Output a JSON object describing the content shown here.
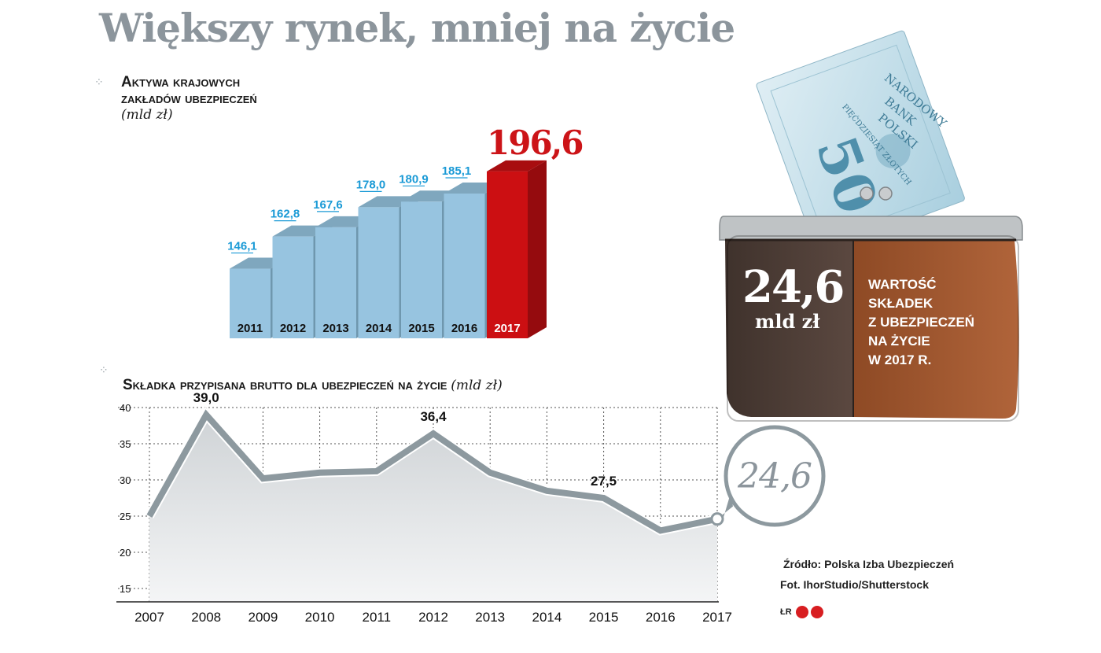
{
  "title": "Większy rynek, mniej na życie",
  "bar_section": {
    "title_line1": "Aktywa krajowych",
    "title_line2": "zakładów ubezpieczeń",
    "unit": "(mld zł)"
  },
  "line_section": {
    "title": "Składka przypisana brutto dla ubezpieczeń na życie",
    "unit": "(mld zł)",
    "callout": "24,6"
  },
  "wallet": {
    "value": "24,6",
    "unit": "mld zł",
    "caption_lines": [
      "WARTOŚĆ",
      "SKŁADEK",
      "Z UBEZPIECZEŃ",
      "NA ŻYCIE",
      "W 2017 R."
    ],
    "banknote_number": "50",
    "banknote_text1": "NARODOWY",
    "banknote_text2": "BANK",
    "banknote_text3": "POLSKI",
    "banknote_text4": "PIĘĆDZIESIĄT ZŁOTYCH"
  },
  "source": "Źródło: Polska Izba Ubezpieczeń",
  "photo_credit": "Fot. IhorStudio/Shutterstock",
  "logo": "ŁR",
  "colors": {
    "bar_front": "#97c4e0",
    "bar_top": "#7fa7be",
    "bar_side": "#6f97ae",
    "bar_highlight": "#cc0f12",
    "bar_highlight_top": "#a80d10",
    "bar_highlight_side": "#950b0e",
    "value_label": "#1a9ad6",
    "line": "#8d999f",
    "title": "#8c959c",
    "highlight_text": "#cc1418"
  },
  "chart_data": [
    {
      "type": "bar",
      "title": "Aktywa krajowych zakładów ubezpieczeń",
      "ylabel": "(mld zł)",
      "categories": [
        "2011",
        "2012",
        "2013",
        "2014",
        "2015",
        "2016",
        "2017"
      ],
      "values": [
        146.1,
        162.8,
        167.6,
        178.0,
        180.9,
        185.1,
        196.6
      ],
      "value_labels": [
        "146,1",
        "162,8",
        "167,6",
        "178,0",
        "180,9",
        "185,1",
        "196,6"
      ],
      "highlight_index": 6
    },
    {
      "type": "area",
      "title": "Składka przypisana brutto dla ubezpieczeń na życie",
      "ylabel": "(mld zł)",
      "x": [
        "2007",
        "2008",
        "2009",
        "2010",
        "2011",
        "2012",
        "2013",
        "2014",
        "2015",
        "2016",
        "2017"
      ],
      "values": [
        25.0,
        39.0,
        30.2,
        31.0,
        31.2,
        36.4,
        31.0,
        28.5,
        27.5,
        23.0,
        24.6
      ],
      "labeled_points": [
        {
          "index": 1,
          "label": "39,0"
        },
        {
          "index": 5,
          "label": "36,4"
        },
        {
          "index": 8,
          "label": "27,5"
        }
      ],
      "ylim": [
        15,
        40
      ],
      "yticks": [
        15,
        20,
        25,
        30,
        35,
        40
      ],
      "grid": true
    }
  ]
}
